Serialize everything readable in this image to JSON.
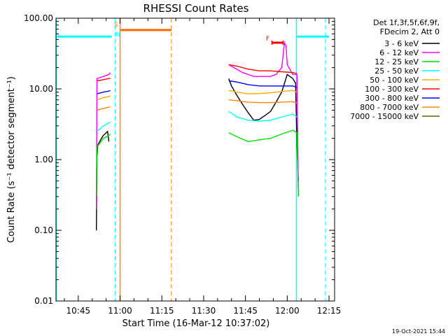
{
  "chart_data": {
    "type": "line",
    "title": "RHESSI Count Rates",
    "xlabel": "Start Time (16-Mar-12 10:37:02)",
    "ylabel": "Count Rate (s⁻¹ detector segment⁻¹)",
    "yscale": "log",
    "ylim": [
      0.01,
      100
    ],
    "xlim_minutes": [
      37,
      137
    ],
    "yticks": [
      {
        "value": 0.01,
        "label": "0.01"
      },
      {
        "value": 0.1,
        "label": "0.10"
      },
      {
        "value": 1,
        "label": "1.00"
      },
      {
        "value": 10,
        "label": "10.00"
      },
      {
        "value": 100,
        "label": "100.00"
      }
    ],
    "xticks": [
      {
        "minute": 45,
        "label": "10:45"
      },
      {
        "minute": 60,
        "label": "11:00"
      },
      {
        "minute": 75,
        "label": "11:15"
      },
      {
        "minute": 90,
        "label": "11:30"
      },
      {
        "minute": 105,
        "label": "11:45"
      },
      {
        "minute": 120,
        "label": "12:00"
      },
      {
        "minute": 135,
        "label": "12:15"
      }
    ],
    "legend_header": [
      "Det 1f,3f,5f,6f,9f,",
      "FDecim 2, Att 0"
    ],
    "legend_position": "right",
    "series": [
      {
        "name": "3 - 6 keV",
        "color": "#000000",
        "points": [
          [
            51.5,
            0.1
          ],
          [
            51.7,
            1.1
          ],
          [
            52,
            1.6
          ],
          [
            53,
            1.9
          ],
          [
            54,
            2.2
          ],
          [
            55.5,
            2.5
          ],
          [
            56,
            1.8
          ],
          [
            99,
            14
          ],
          [
            100,
            11
          ],
          [
            102,
            8
          ],
          [
            104,
            6
          ],
          [
            106,
            4.6
          ],
          [
            108,
            3.6
          ],
          [
            110,
            3.7
          ],
          [
            112,
            4.2
          ],
          [
            114,
            4.8
          ],
          [
            116,
            6.5
          ],
          [
            118,
            9
          ],
          [
            119,
            12
          ],
          [
            120,
            16
          ],
          [
            122,
            14
          ],
          [
            123,
            12
          ],
          [
            123.5,
            1.5
          ],
          [
            124,
            0.5
          ]
        ]
      },
      {
        "name": "6 - 12 keV",
        "color": "#ff00ff",
        "points": [
          [
            51.5,
            0.2
          ],
          [
            51.7,
            14
          ],
          [
            54,
            15
          ],
          [
            56,
            16
          ],
          [
            56.5,
            17
          ],
          [
            99,
            22
          ],
          [
            104,
            17
          ],
          [
            108,
            15
          ],
          [
            112,
            15
          ],
          [
            114,
            15
          ],
          [
            116,
            16
          ],
          [
            118,
            20
          ],
          [
            118.5,
            30
          ],
          [
            119,
            45
          ],
          [
            119.6,
            40
          ],
          [
            120,
            22
          ],
          [
            122,
            16
          ],
          [
            123.5,
            16
          ],
          [
            124,
            0.3
          ]
        ]
      },
      {
        "name": "12 - 25 keV",
        "color": "#00dd00",
        "points": [
          [
            51.5,
            0.3
          ],
          [
            51.7,
            1.5
          ],
          [
            54,
            2
          ],
          [
            56,
            2.2
          ],
          [
            56.5,
            2.3
          ],
          [
            99,
            2.4
          ],
          [
            102,
            2.1
          ],
          [
            106,
            1.8
          ],
          [
            110,
            1.9
          ],
          [
            114,
            2
          ],
          [
            118,
            2.3
          ],
          [
            122,
            2.6
          ],
          [
            123.5,
            2.4
          ],
          [
            124,
            0.3
          ]
        ]
      },
      {
        "name": "25 - 50 keV",
        "color": "#00ffff",
        "points": [
          [
            51.7,
            2.5
          ],
          [
            54,
            3
          ],
          [
            56,
            3.3
          ],
          [
            56.5,
            3.4
          ],
          [
            99,
            4.8
          ],
          [
            102,
            4
          ],
          [
            106,
            3.6
          ],
          [
            110,
            3.5
          ],
          [
            114,
            3.6
          ],
          [
            118,
            4
          ],
          [
            122,
            4.4
          ],
          [
            123.5,
            4
          ]
        ]
      },
      {
        "name": "50 - 100 keV",
        "color": "#ffaa00",
        "points": [
          [
            51.7,
            7
          ],
          [
            54,
            7.5
          ],
          [
            56,
            7.8
          ],
          [
            56.5,
            8
          ],
          [
            99,
            9.5
          ],
          [
            102,
            9
          ],
          [
            106,
            8.5
          ],
          [
            110,
            8.6
          ],
          [
            114,
            8.8
          ],
          [
            118,
            9.2
          ],
          [
            122,
            9.5
          ],
          [
            123.5,
            9
          ]
        ]
      },
      {
        "name": "100 - 300 keV",
        "color": "#ff0000",
        "points": [
          [
            51.7,
            13
          ],
          [
            54,
            13.5
          ],
          [
            56,
            14
          ],
          [
            56.5,
            14
          ],
          [
            99,
            22
          ],
          [
            102,
            21
          ],
          [
            106,
            19
          ],
          [
            110,
            18
          ],
          [
            114,
            18
          ],
          [
            118,
            17.5
          ],
          [
            122,
            17
          ],
          [
            123.5,
            16.5
          ]
        ]
      },
      {
        "name": "300 - 800 keV",
        "color": "#0000ff",
        "points": [
          [
            51.7,
            8.5
          ],
          [
            54,
            9
          ],
          [
            56,
            9.3
          ],
          [
            56.5,
            9.5
          ],
          [
            99,
            13
          ],
          [
            102,
            12.5
          ],
          [
            106,
            11.5
          ],
          [
            110,
            11
          ],
          [
            114,
            11
          ],
          [
            118,
            11
          ],
          [
            122,
            11
          ],
          [
            123.5,
            10.5
          ]
        ]
      },
      {
        "name": "800 - 7000 keV",
        "color": "#ff8800",
        "points": [
          [
            51.7,
            5
          ],
          [
            54,
            5.3
          ],
          [
            56,
            5.5
          ],
          [
            56.5,
            5.6
          ],
          [
            99,
            7
          ],
          [
            102,
            6.8
          ],
          [
            106,
            6.5
          ],
          [
            110,
            6.4
          ],
          [
            114,
            6.4
          ],
          [
            118,
            6.5
          ],
          [
            122,
            6.6
          ],
          [
            123.5,
            6.3
          ]
        ]
      },
      {
        "name": "7000 - 15000 keV",
        "color": "#556b00",
        "points": []
      }
    ],
    "annotations": {
      "attenuator_level": 55,
      "saa_level": 68,
      "flare_level": 45,
      "cyan_solid_minutes": [
        37.1,
        123.3
      ],
      "cyan_dashed_minutes": [
        58.2,
        133.7
      ],
      "orange_solid_minutes": [
        60
      ],
      "orange_dashed_minutes": [
        78.4
      ],
      "cyan_bars": [
        [
          37.5,
          57
        ],
        [
          123.5,
          135
        ]
      ],
      "orange_bar": [
        60.2,
        78.4
      ],
      "flare_bar": [
        114.5,
        118.5
      ],
      "labels": [
        {
          "text": "S",
          "minute": 58.5,
          "value": 75,
          "color": "#ff8800"
        },
        {
          "text": "N",
          "minute": 59.3,
          "value": 55,
          "color": "#00ffff"
        },
        {
          "text": "F",
          "minute": 113,
          "value": 48,
          "color": "#ff0000"
        }
      ]
    },
    "grid": false
  },
  "footer": {
    "timestamp": "19-Oct-2021 15:44"
  }
}
